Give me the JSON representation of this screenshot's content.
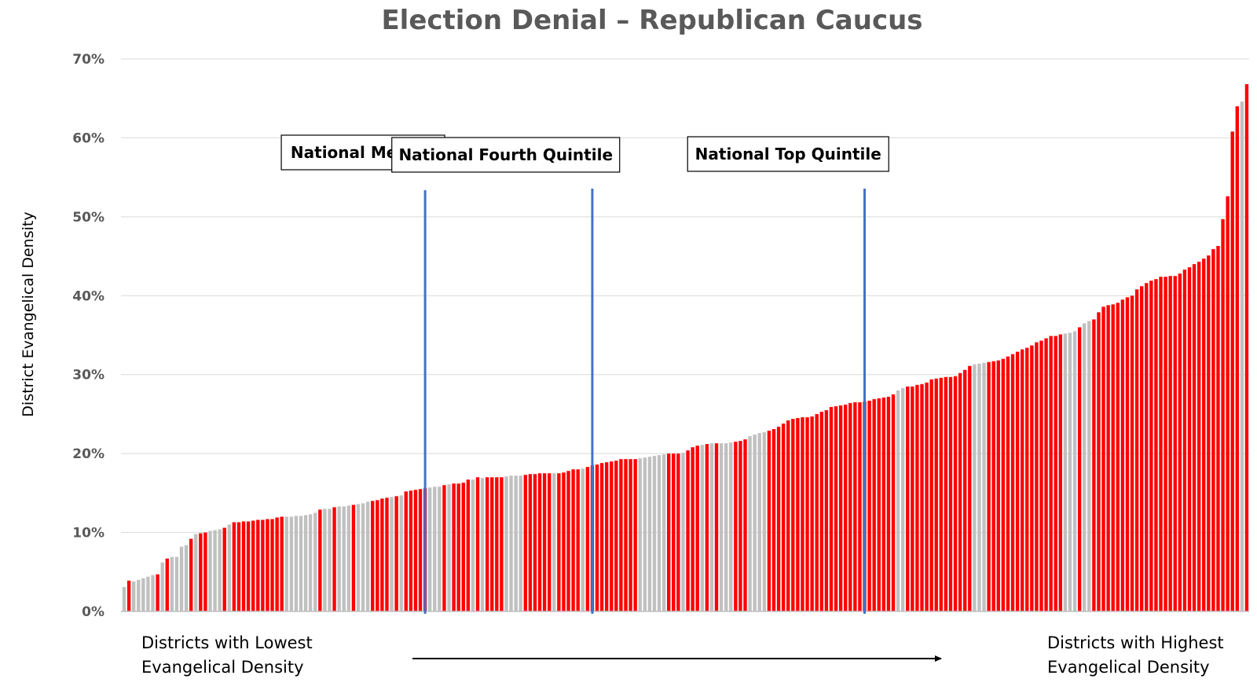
{
  "chart_data": {
    "type": "bar",
    "title": "Election Denial – Republican Caucus",
    "xlabel": "",
    "ylabel": "District Evangelical Density",
    "ylim": [
      0,
      70
    ],
    "yticks": [
      "0%",
      "10%",
      "20%",
      "30%",
      "40%",
      "50%",
      "60%",
      "70%"
    ],
    "grid": true,
    "colors": {
      "denier": "#ff0000",
      "other": "#c0c0c0",
      "marker": "#4472c4",
      "grid": "#d9d9d9",
      "axis": "#bfbfbf"
    },
    "footnotes": {
      "left": [
        "Districts with Lowest",
        "Evangelical Density"
      ],
      "right": [
        "Districts with Highest",
        "Evangelical Density"
      ]
    },
    "markers": [
      {
        "label": "National Median",
        "value": 15.6
      },
      {
        "label": "National Fourth Quintile",
        "value": 18.4
      },
      {
        "label": "National Top Quintile",
        "value": 26.6
      }
    ],
    "values": [
      3.1,
      3.9,
      3.8,
      4.0,
      4.2,
      4.4,
      4.6,
      4.7,
      6.2,
      6.7,
      6.9,
      6.9,
      8.2,
      8.4,
      9.2,
      9.8,
      9.9,
      10.0,
      10.2,
      10.3,
      10.4,
      10.6,
      11.0,
      11.3,
      11.3,
      11.4,
      11.4,
      11.5,
      11.6,
      11.6,
      11.7,
      11.7,
      11.9,
      12.0,
      12.0,
      12.0,
      12.1,
      12.1,
      12.2,
      12.3,
      12.5,
      12.9,
      13.0,
      13.0,
      13.2,
      13.3,
      13.3,
      13.4,
      13.5,
      13.6,
      13.7,
      13.9,
      14.0,
      14.1,
      14.3,
      14.4,
      14.5,
      14.6,
      14.7,
      15.2,
      15.3,
      15.4,
      15.5,
      15.6,
      15.7,
      15.8,
      15.8,
      16.0,
      16.1,
      16.2,
      16.2,
      16.3,
      16.7,
      16.7,
      17.0,
      16.9,
      17.0,
      17.0,
      17.0,
      17.0,
      17.1,
      17.2,
      17.2,
      17.2,
      17.3,
      17.4,
      17.4,
      17.5,
      17.5,
      17.5,
      17.5,
      17.5,
      17.6,
      17.8,
      18.0,
      18.0,
      18.1,
      18.3,
      18.5,
      18.6,
      18.8,
      18.9,
      19.0,
      19.1,
      19.3,
      19.3,
      19.3,
      19.3,
      19.4,
      19.5,
      19.6,
      19.7,
      19.8,
      19.9,
      20.0,
      20.0,
      20.0,
      20.1,
      20.4,
      20.8,
      21.0,
      21.1,
      21.2,
      21.3,
      21.3,
      21.3,
      21.3,
      21.4,
      21.5,
      21.6,
      21.8,
      22.2,
      22.4,
      22.6,
      22.7,
      22.9,
      23.1,
      23.4,
      23.8,
      24.2,
      24.4,
      24.5,
      24.6,
      24.6,
      24.7,
      25.0,
      25.3,
      25.5,
      25.9,
      26.0,
      26.1,
      26.2,
      26.4,
      26.5,
      26.5,
      26.6,
      26.7,
      26.9,
      27.0,
      27.1,
      27.2,
      27.5,
      28.0,
      28.3,
      28.5,
      28.5,
      28.7,
      28.8,
      29.0,
      29.4,
      29.5,
      29.6,
      29.7,
      29.7,
      29.8,
      30.2,
      30.6,
      31.1,
      31.3,
      31.4,
      31.5,
      31.6,
      31.7,
      31.8,
      32.0,
      32.3,
      32.6,
      32.9,
      33.2,
      33.4,
      33.7,
      34.1,
      34.3,
      34.6,
      34.9,
      34.9,
      35.1,
      35.2,
      35.3,
      35.5,
      36.0,
      36.5,
      36.8,
      37.0,
      37.9,
      38.6,
      38.8,
      38.9,
      39.1,
      39.5,
      39.8,
      40.0,
      40.8,
      41.2,
      41.6,
      41.9,
      42.1,
      42.4,
      42.4,
      42.5,
      42.5,
      42.8,
      43.3,
      43.6,
      44.0,
      44.3,
      44.7,
      45.1,
      45.9,
      46.3,
      49.7,
      52.6,
      60.8,
      64.0,
      64.6,
      66.8
    ],
    "is_denier": [
      0,
      1,
      0,
      0,
      0,
      0,
      0,
      1,
      0,
      1,
      0,
      0,
      0,
      0,
      1,
      0,
      1,
      1,
      0,
      0,
      0,
      1,
      0,
      1,
      1,
      1,
      1,
      1,
      1,
      1,
      1,
      1,
      1,
      1,
      0,
      0,
      0,
      0,
      0,
      0,
      0,
      1,
      0,
      0,
      1,
      0,
      0,
      0,
      1,
      0,
      0,
      0,
      1,
      1,
      1,
      1,
      0,
      1,
      0,
      1,
      1,
      1,
      1,
      1,
      0,
      0,
      0,
      1,
      0,
      1,
      1,
      1,
      1,
      0,
      1,
      0,
      1,
      1,
      1,
      1,
      0,
      0,
      0,
      0,
      1,
      1,
      1,
      1,
      1,
      1,
      0,
      1,
      1,
      1,
      1,
      1,
      0,
      1,
      1,
      1,
      1,
      1,
      1,
      1,
      1,
      1,
      1,
      1,
      0,
      0,
      0,
      0,
      0,
      0,
      1,
      1,
      1,
      0,
      1,
      1,
      1,
      0,
      1,
      0,
      1,
      0,
      0,
      0,
      1,
      1,
      1,
      0,
      0,
      0,
      0,
      1,
      1,
      1,
      1,
      1,
      1,
      1,
      1,
      1,
      1,
      1,
      1,
      1,
      1,
      1,
      1,
      1,
      1,
      1,
      1,
      1,
      1,
      1,
      1,
      1,
      1,
      1,
      0,
      0,
      1,
      1,
      1,
      1,
      1,
      1,
      1,
      1,
      1,
      1,
      1,
      1,
      1,
      1,
      0,
      0,
      0,
      1,
      1,
      1,
      1,
      1,
      1,
      1,
      1,
      1,
      1,
      1,
      1,
      1,
      1,
      1,
      1,
      0,
      0,
      0,
      1,
      0,
      0,
      1,
      1,
      1,
      1,
      1,
      1,
      1,
      1,
      1,
      1,
      1,
      1,
      1,
      1,
      1,
      1,
      1,
      1,
      1,
      1,
      1,
      1,
      1,
      1,
      1,
      1,
      1,
      1,
      1,
      1,
      1,
      0,
      1,
      1,
      1,
      1,
      0,
      0
    ]
  }
}
